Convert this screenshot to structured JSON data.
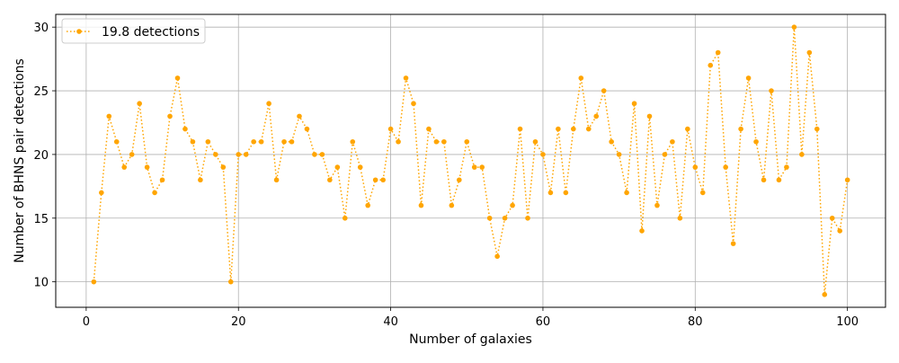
{
  "chart_data": {
    "type": "line",
    "title": "",
    "xlabel": "Number of galaxies",
    "ylabel": "Number of BHNS pair detections",
    "xlim": [
      -4,
      105
    ],
    "ylim": [
      8,
      31
    ],
    "xticks": [
      0,
      20,
      40,
      60,
      80,
      100
    ],
    "yticks": [
      10,
      15,
      20,
      25,
      30
    ],
    "grid": true,
    "legend_position": "top-left",
    "series": [
      {
        "name": "19.8 detections",
        "color": "#ffa500",
        "line_style": "dotted",
        "marker": "circle",
        "x": [
          1,
          2,
          3,
          4,
          5,
          6,
          7,
          8,
          9,
          10,
          11,
          12,
          13,
          14,
          15,
          16,
          17,
          18,
          19,
          20,
          21,
          22,
          23,
          24,
          25,
          26,
          27,
          28,
          29,
          30,
          31,
          32,
          33,
          34,
          35,
          36,
          37,
          38,
          39,
          40,
          41,
          42,
          43,
          44,
          45,
          46,
          47,
          48,
          49,
          50,
          51,
          52,
          53,
          54,
          55,
          56,
          57,
          58,
          59,
          60,
          61,
          62,
          63,
          64,
          65,
          66,
          67,
          68,
          69,
          70,
          71,
          72,
          73,
          74,
          75,
          76,
          77,
          78,
          79,
          80,
          81,
          82,
          83,
          84,
          85,
          86,
          87,
          88,
          89,
          90,
          91,
          92,
          93,
          94,
          95,
          96,
          97,
          98,
          99,
          100
        ],
        "y": [
          10,
          17,
          23,
          21,
          19,
          20,
          24,
          19,
          17,
          18,
          23,
          26,
          22,
          21,
          18,
          21,
          20,
          19,
          10,
          20,
          20,
          21,
          21,
          24,
          18,
          21,
          21,
          23,
          22,
          20,
          20,
          18,
          19,
          15,
          21,
          19,
          16,
          18,
          18,
          22,
          21,
          26,
          24,
          16,
          22,
          21,
          21,
          16,
          18,
          21,
          19,
          19,
          15,
          12,
          15,
          16,
          22,
          15,
          21,
          20,
          17,
          22,
          17,
          22,
          26,
          22,
          23,
          25,
          21,
          20,
          17,
          24,
          14,
          23,
          16,
          20,
          21,
          15,
          22,
          19,
          17,
          27,
          28,
          19,
          13,
          22,
          26,
          21,
          18,
          25,
          18,
          19,
          30,
          20,
          28,
          22,
          9,
          15,
          14,
          18
        ]
      }
    ]
  }
}
